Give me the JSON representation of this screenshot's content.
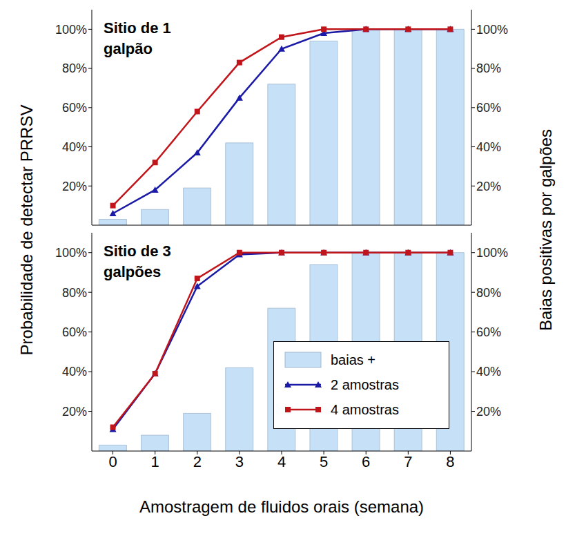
{
  "chart_data": [
    {
      "type": "combo",
      "title": "Sitio de 1 galpão",
      "y_label": "Probabilidade de detectar PRRSV",
      "y2_label": "Baias positivas por galpões",
      "x": [
        0,
        1,
        2,
        3,
        4,
        5,
        6,
        7,
        8
      ],
      "ylim": [
        0,
        110
      ],
      "yticks": [
        {
          "value": 20,
          "label": "20%"
        },
        {
          "value": 40,
          "label": "40%"
        },
        {
          "value": 60,
          "label": "60%"
        },
        {
          "value": 80,
          "label": "80%"
        },
        {
          "value": 100,
          "label": "100%"
        }
      ],
      "y2lim": [
        0,
        110
      ],
      "y2ticks": [
        {
          "value": 20,
          "label": "20%"
        },
        {
          "value": 40,
          "label": "40%"
        },
        {
          "value": 60,
          "label": "60%"
        },
        {
          "value": 80,
          "label": "80%"
        },
        {
          "value": 100,
          "label": "100%"
        }
      ],
      "tick_labels": "y",
      "series": [
        {
          "name": "baias +",
          "type": "bar",
          "axis": "y2",
          "color": "#c5e0f7",
          "values": [
            3,
            8,
            19,
            42,
            72,
            94,
            100,
            100,
            100
          ]
        },
        {
          "name": "2 amostras",
          "type": "line",
          "color": "#1a1aa6",
          "marker": "triangle",
          "values": [
            6,
            18,
            37,
            65,
            90,
            98,
            100,
            100,
            100
          ]
        },
        {
          "name": "4 amostras",
          "type": "line",
          "color": "#c0161b",
          "marker": "square",
          "values": [
            10,
            32,
            58,
            83,
            96,
            100,
            100,
            100,
            100
          ]
        }
      ]
    },
    {
      "type": "combo",
      "title": "Sitio de 3 galpões",
      "x_label": "Amostragem de fluidos orais (semana)",
      "x": [
        0,
        1,
        2,
        3,
        4,
        5,
        6,
        7,
        8
      ],
      "ylim": [
        0,
        110
      ],
      "yticks": [
        {
          "value": 20,
          "label": "20%"
        },
        {
          "value": 40,
          "label": "40%"
        },
        {
          "value": 60,
          "label": "60%"
        },
        {
          "value": 80,
          "label": "80%"
        },
        {
          "value": 100,
          "label": "100%"
        }
      ],
      "y2lim": [
        0,
        110
      ],
      "y2ticks": [
        {
          "value": 20,
          "label": "20%"
        },
        {
          "value": 40,
          "label": "40%"
        },
        {
          "value": 60,
          "label": "60%"
        },
        {
          "value": 80,
          "label": "80%"
        },
        {
          "value": 100,
          "label": "100%"
        }
      ],
      "legend": "lower right",
      "series": [
        {
          "name": "baias +",
          "type": "bar",
          "axis": "y2",
          "color": "#c5e0f7",
          "values": [
            3,
            8,
            19,
            42,
            72,
            94,
            100,
            100,
            100
          ]
        },
        {
          "name": "2 amostras",
          "type": "line",
          "color": "#1a1aa6",
          "marker": "triangle",
          "values": [
            11,
            39,
            83,
            99,
            100,
            100,
            100,
            100,
            100
          ]
        },
        {
          "name": "4 amostras",
          "type": "line",
          "color": "#c0161b",
          "marker": "square",
          "values": [
            12,
            39,
            87,
            100,
            100,
            100,
            100,
            100,
            100
          ]
        }
      ]
    }
  ]
}
